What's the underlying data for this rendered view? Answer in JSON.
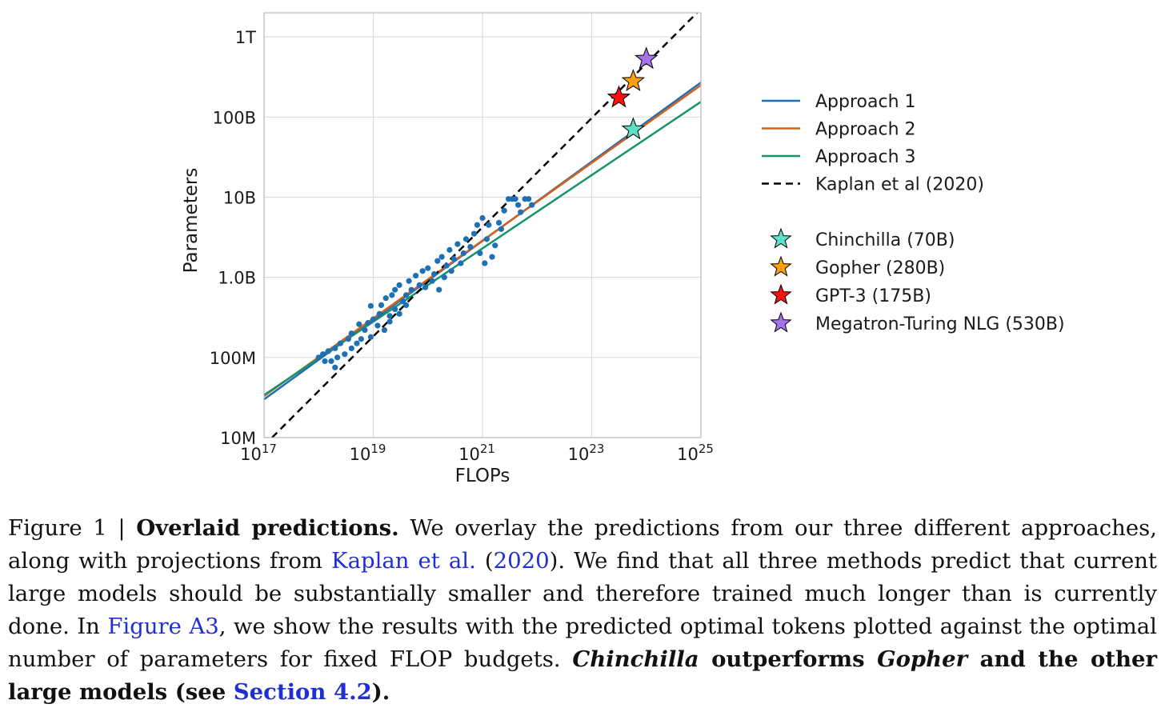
{
  "chart_data": {
    "type": "scatter",
    "xlabel": "FLOPs",
    "ylabel": "Parameters",
    "x_scale": "log",
    "y_scale": "log",
    "xlim": [
      1e+17,
      1e+25
    ],
    "ylim": [
      10000000.0,
      2000000000000.0
    ],
    "x_ticks": [
      {
        "value": 1e+17,
        "base": "10",
        "exp": "17"
      },
      {
        "value": 1e+19,
        "base": "10",
        "exp": "19"
      },
      {
        "value": 1e+21,
        "base": "10",
        "exp": "21"
      },
      {
        "value": 1e+23,
        "base": "10",
        "exp": "23"
      },
      {
        "value": 1e+25,
        "base": "10",
        "exp": "25"
      }
    ],
    "y_ticks": [
      {
        "value": 10000000.0,
        "label": "10M"
      },
      {
        "value": 100000000.0,
        "label": "100M"
      },
      {
        "value": 1000000000.0,
        "label": "1.0B"
      },
      {
        "value": 10000000000.0,
        "label": "10B"
      },
      {
        "value": 100000000000.0,
        "label": "100B"
      },
      {
        "value": 1000000000000.0,
        "label": "1T"
      }
    ],
    "grid": true,
    "legend_position": "right",
    "lines": [
      {
        "name": "Approach 1",
        "color": "#1f6fb4",
        "dash": "solid",
        "points": [
          [
            1e+17,
            30000000.0
          ],
          [
            1e+25,
            270000000000.0
          ]
        ]
      },
      {
        "name": "Approach 2",
        "color": "#d6601a",
        "dash": "solid",
        "points": [
          [
            1e+17,
            33000000.0
          ],
          [
            1e+25,
            250000000000.0
          ]
        ]
      },
      {
        "name": "Approach 3",
        "color": "#12946e",
        "dash": "solid",
        "points": [
          [
            1e+17,
            34000000.0
          ],
          [
            1e+25,
            155000000000.0
          ]
        ]
      },
      {
        "name": "Kaplan et al (2020)",
        "color": "#000000",
        "dash": "dashed",
        "points": [
          [
            1.4e+17,
            10000000.0
          ],
          [
            8.5e+24,
            2000000000000.0
          ]
        ]
      }
    ],
    "scatter": {
      "color": "#1f6fb4",
      "points": [
        [
          1e+18,
          100000000.0
        ],
        [
          1.2e+18,
          110000000.0
        ],
        [
          1.5e+18,
          120000000.0
        ],
        [
          1.3e+18,
          90000000.0
        ],
        [
          1.7e+18,
          90000000.0
        ],
        [
          2e+18,
          130000000.0
        ],
        [
          2.5e+18,
          150000000.0
        ],
        [
          2e+18,
          75000000.0
        ],
        [
          2.2e+18,
          100000000.0
        ],
        [
          3e+18,
          110000000.0
        ],
        [
          3.5e+18,
          170000000.0
        ],
        [
          4e+18,
          200000000.0
        ],
        [
          4e+18,
          130000000.0
        ],
        [
          5e+18,
          150000000.0
        ],
        [
          5.5e+18,
          260000000.0
        ],
        [
          6e+18,
          170000000.0
        ],
        [
          7e+18,
          220000000.0
        ],
        [
          8e+18,
          270000000.0
        ],
        [
          9e+18,
          180000000.0
        ],
        [
          9e+18,
          440000000.0
        ],
        [
          1e+19,
          300000000.0
        ],
        [
          1.2e+19,
          250000000.0
        ],
        [
          1.3e+19,
          350000000.0
        ],
        [
          1.4e+19,
          450000000.0
        ],
        [
          1.6e+19,
          220000000.0
        ],
        [
          1.7e+19,
          550000000.0
        ],
        [
          2e+19,
          330000000.0
        ],
        [
          2e+19,
          280000000.0
        ],
        [
          2.2e+19,
          600000000.0
        ],
        [
          2.5e+19,
          400000000.0
        ],
        [
          2.5e+19,
          700000000.0
        ],
        [
          3e+19,
          350000000.0
        ],
        [
          3e+19,
          800000000.0
        ],
        [
          3.5e+19,
          500000000.0
        ],
        [
          4e+19,
          600000000.0
        ],
        [
          4e+19,
          450000000.0
        ],
        [
          4.5e+19,
          900000000.0
        ],
        [
          5e+19,
          700000000.0
        ],
        [
          6e+19,
          1050000000.0
        ],
        [
          7e+19,
          800000000.0
        ],
        [
          8e+19,
          1200000000.0
        ],
        [
          9e+19,
          750000000.0
        ],
        [
          1e+20,
          1300000000.0
        ],
        [
          1.2e+20,
          900000000.0
        ],
        [
          1.3e+20,
          1100000000.0
        ],
        [
          1.5e+20,
          1600000000.0
        ],
        [
          1.6e+20,
          700000000.0
        ],
        [
          1.8e+20,
          1800000000.0
        ],
        [
          2e+20,
          1000000000.0
        ],
        [
          2.2e+20,
          1400000000.0
        ],
        [
          2.5e+20,
          2200000000.0
        ],
        [
          2.7e+20,
          1200000000.0
        ],
        [
          3e+20,
          1700000000.0
        ],
        [
          3.5e+20,
          2600000000.0
        ],
        [
          4e+20,
          1500000000.0
        ],
        [
          4.5e+20,
          2000000000.0
        ],
        [
          5e+20,
          3000000000.0
        ],
        [
          6e+20,
          2400000000.0
        ],
        [
          7e+20,
          3500000000.0
        ],
        [
          8e+20,
          4500000000.0
        ],
        [
          9e+20,
          2000000000.0
        ],
        [
          1e+21,
          5500000000.0
        ],
        [
          1.1e+21,
          1500000000.0
        ],
        [
          1.2e+21,
          3000000000.0
        ],
        [
          1.3e+21,
          4500000000.0
        ],
        [
          1.5e+21,
          1800000000.0
        ],
        [
          1.7e+21,
          2500000000.0
        ],
        [
          2e+21,
          4800000000.0
        ],
        [
          2.2e+21,
          4000000000.0
        ],
        [
          2.5e+21,
          6800000000.0
        ],
        [
          3e+21,
          9500000000.0
        ],
        [
          3.5e+21,
          9500000000.0
        ],
        [
          4e+21,
          9500000000.0
        ],
        [
          4.5e+21,
          8000000000.0
        ],
        [
          5e+21,
          6500000000.0
        ],
        [
          6e+21,
          9500000000.0
        ],
        [
          7e+21,
          9500000000.0
        ],
        [
          8e+21,
          8000000000.0
        ]
      ]
    },
    "stars": [
      {
        "name": "Chinchilla (70B)",
        "color": "#5ee0c4",
        "x": 5.76e+23,
        "y": 70000000000.0
      },
      {
        "name": "Gopher (280B)",
        "color": "#ff9f10",
        "x": 5.76e+23,
        "y": 280000000000.0
      },
      {
        "name": "GPT-3 (175B)",
        "color": "#ff1010",
        "x": 3.14e+23,
        "y": 175000000000.0
      },
      {
        "name": "Megatron-Turing NLG (530B)",
        "color": "#a673e8",
        "x": 1e+24,
        "y": 530000000000.0
      }
    ]
  },
  "caption": {
    "figure_label": "Figure 1 | ",
    "bold_title": "Overlaid predictions.",
    "s1": " We overlay the predictions from our three different approaches, along with projections from ",
    "link_kaplan": "Kaplan et al.",
    "s2": " (",
    "link_year": "2020",
    "s3": "). We find that all three methods predict that current large models should be substantially smaller and therefore trained much longer than is currently done. In ",
    "link_figure": "Figure A3",
    "s4": ", we show the results with the predicted optimal tokens plotted against the optimal number of parameters for fixed FLOP budgets. ",
    "bold_chinchilla": "Chinchilla",
    "bold_mid": " outperforms ",
    "bold_gopher": "Gopher",
    "bold_end": " and the other large models (see ",
    "link_section": "Section 4.2",
    "bold_close": ")."
  }
}
